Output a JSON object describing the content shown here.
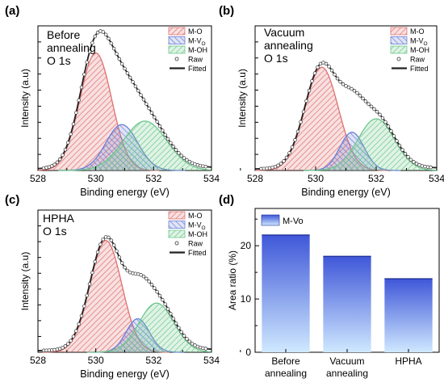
{
  "panels": {
    "a": {
      "letter": "(a)",
      "label_lines": [
        "Before",
        "annealing",
        "O 1s"
      ],
      "xlabel": "Binding energy (eV)",
      "ylabel": "Intensity (a.u)",
      "x_ticks": [
        "528",
        "530",
        "532",
        "534"
      ],
      "legend": [
        "M-O",
        "M-V",
        "M-OH",
        "Raw",
        "Fitted"
      ]
    },
    "b": {
      "letter": "(b)",
      "label_lines": [
        "Vacuum",
        "annealing",
        "O 1s"
      ],
      "xlabel": "Binding energy (eV)",
      "ylabel": "Intensity (a.u)",
      "x_ticks": [
        "528",
        "530",
        "532",
        "534"
      ],
      "legend": [
        "M-O",
        "M-V",
        "M-OH",
        "Raw",
        "Fitted"
      ]
    },
    "c": {
      "letter": "(c)",
      "label_lines": [
        "HPHA",
        "O 1s"
      ],
      "xlabel": "Binding energy (eV)",
      "ylabel": "Intensity (a.u)",
      "x_ticks": [
        "528",
        "530",
        "532",
        "534"
      ],
      "legend": [
        "M-O",
        "M-V",
        "M-OH",
        "Raw",
        "Fitted"
      ]
    },
    "d": {
      "letter": "(d)",
      "ylabel": "Area ratio (%)",
      "legend": [
        "M-Vo"
      ],
      "y_ticks": [
        "0",
        "10",
        "20"
      ]
    }
  },
  "subscript_o": "O",
  "colors": {
    "mo": "#e07070",
    "mv": "#6b7fd6",
    "moh": "#6cc78a",
    "fitted": "#222222",
    "bar_top": "#3f57d8",
    "bar_bottom": "#cfe8ff"
  },
  "chart_data": [
    {
      "type": "area",
      "panel": "a",
      "xlim": [
        528,
        534
      ],
      "series": [
        {
          "name": "M-O",
          "center": 530.0,
          "height": 1.0,
          "width": 0.55
        },
        {
          "name": "M-V",
          "center": 530.9,
          "height": 0.39,
          "width": 0.55
        },
        {
          "name": "M-OH",
          "center": 531.7,
          "height": 0.42,
          "width": 0.75
        }
      ]
    },
    {
      "type": "area",
      "panel": "b",
      "xlim": [
        528,
        534
      ],
      "series": [
        {
          "name": "M-O",
          "center": 530.2,
          "height": 1.0,
          "width": 0.55
        },
        {
          "name": "M-V",
          "center": 531.2,
          "height": 0.37,
          "width": 0.4
        },
        {
          "name": "M-OH",
          "center": 532.0,
          "height": 0.5,
          "width": 0.6
        }
      ]
    },
    {
      "type": "area",
      "panel": "c",
      "xlim": [
        528,
        534
      ],
      "series": [
        {
          "name": "M-O",
          "center": 530.35,
          "height": 1.0,
          "width": 0.55
        },
        {
          "name": "M-V",
          "center": 531.45,
          "height": 0.3,
          "width": 0.4
        },
        {
          "name": "M-OH",
          "center": 532.1,
          "height": 0.44,
          "width": 0.6
        }
      ]
    },
    {
      "type": "bar",
      "panel": "d",
      "categories": [
        [
          "Before",
          "annealing"
        ],
        [
          "Vacuum",
          "annealing"
        ],
        [
          "HPHA"
        ]
      ],
      "series": [
        {
          "name": "M-Vo",
          "values": [
            22.0,
            18.0,
            13.8
          ]
        }
      ],
      "ylim": [
        0,
        27
      ],
      "ylabel": "Area ratio (%)"
    }
  ]
}
